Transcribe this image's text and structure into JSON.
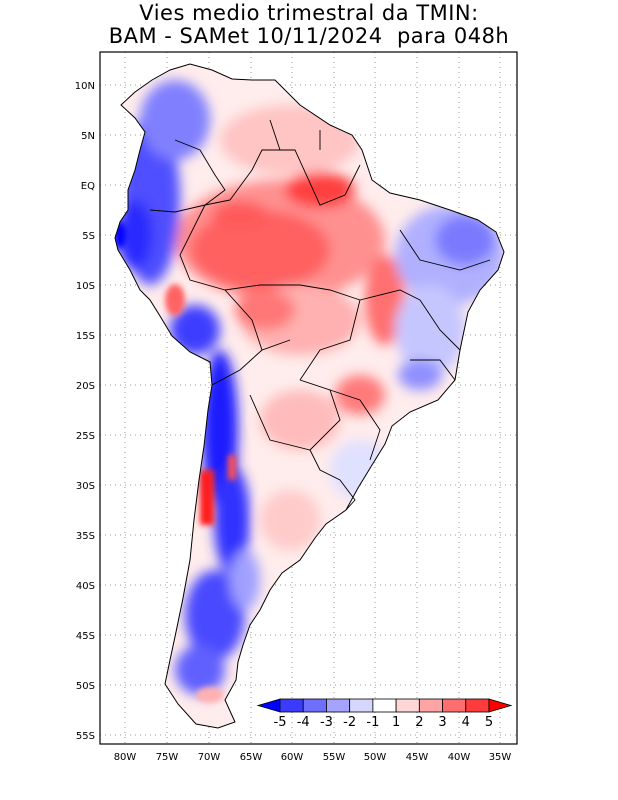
{
  "title": {
    "line1": "Vies medio trimestral da TMIN:",
    "line2": "BAM - SAMet 10/11/2024  para 048h"
  },
  "map": {
    "region": "South America",
    "projection": "lat-lon",
    "lon_range": [
      -85,
      -34
    ],
    "lat_range": [
      -56,
      12
    ],
    "gridlines": "dotted",
    "lat_labels": [
      "10N",
      "5N",
      "EQ",
      "5S",
      "10S",
      "15S",
      "20S",
      "25S",
      "30S",
      "35S",
      "40S",
      "45S",
      "50S",
      "55S"
    ],
    "lon_labels": [
      "80W",
      "75W",
      "70W",
      "65W",
      "60W",
      "55W",
      "50W",
      "45W",
      "40W",
      "35W"
    ]
  },
  "colorbar": {
    "placement": "bottom-right inside map",
    "labels": [
      "-5",
      "-4",
      "-3",
      "-2",
      "-1",
      "1",
      "2",
      "3",
      "4",
      "5"
    ],
    "colors": [
      "#0000ff",
      "#3b3bff",
      "#6e6eff",
      "#a4a4ff",
      "#d6d6ff",
      "#ffffff",
      "#ffd6d6",
      "#ffa4a4",
      "#ff6e6e",
      "#ff3b3b",
      "#ff0000"
    ]
  },
  "colors": {
    "cold_strong": "#1a1aff",
    "cold_mid": "#7777ff",
    "cold_light": "#c8c8ff",
    "warm_light": "#ffc8c8",
    "warm_mid": "#ff8080",
    "warm_strong": "#ff2020",
    "border": "#000000"
  }
}
